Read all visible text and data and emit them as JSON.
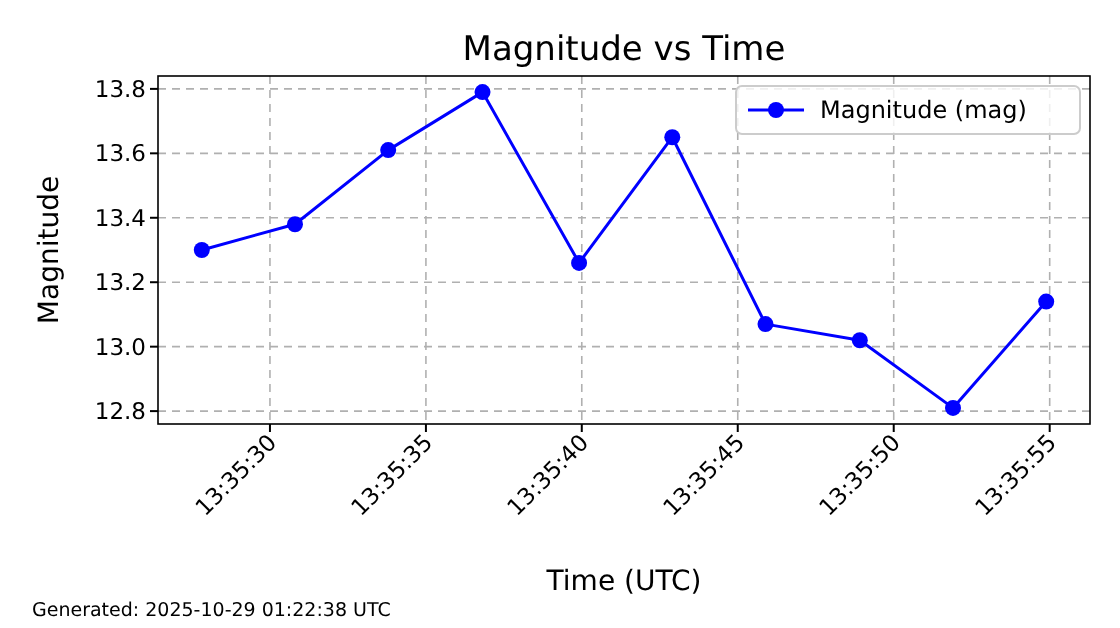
{
  "chart_data": {
    "type": "line",
    "title": "Magnitude vs Time",
    "xlabel": "Time (UTC)",
    "ylabel": "Magnitude",
    "x": [
      13.59106,
      13.59189,
      13.59272,
      13.59356,
      13.59442,
      13.59525,
      13.59608,
      13.59692,
      13.59775,
      13.59858
    ],
    "series": [
      {
        "name": "Magnitude (mag)",
        "color": "#0000ff",
        "values": [
          13.3,
          13.38,
          13.61,
          13.79,
          13.26,
          13.65,
          13.07,
          13.02,
          12.81,
          13.14
        ]
      }
    ],
    "xlim": [
      13.59067,
      13.59897
    ],
    "xticks": [
      {
        "value": 13.591667,
        "label": "13:35:30"
      },
      {
        "value": 13.593056,
        "label": "13:35:35"
      },
      {
        "value": 13.594444,
        "label": "13:35:40"
      },
      {
        "value": 13.595833,
        "label": "13:35:45"
      },
      {
        "value": 13.597222,
        "label": "13:35:50"
      },
      {
        "value": 13.598611,
        "label": "13:35:55"
      }
    ],
    "ylim": [
      12.76,
      13.84
    ],
    "yticks": [
      {
        "value": 12.8,
        "label": "12.8"
      },
      {
        "value": 13.0,
        "label": "13.0"
      },
      {
        "value": 13.2,
        "label": "13.2"
      },
      {
        "value": 13.4,
        "label": "13.4"
      },
      {
        "value": 13.6,
        "label": "13.6"
      },
      {
        "value": 13.8,
        "label": "13.8"
      }
    ],
    "grid": true,
    "legend": "top right",
    "marker": "circle",
    "line_style": "solid",
    "annotations": [
      "Generated: 2025-10-29 01:22:38 UTC"
    ]
  }
}
